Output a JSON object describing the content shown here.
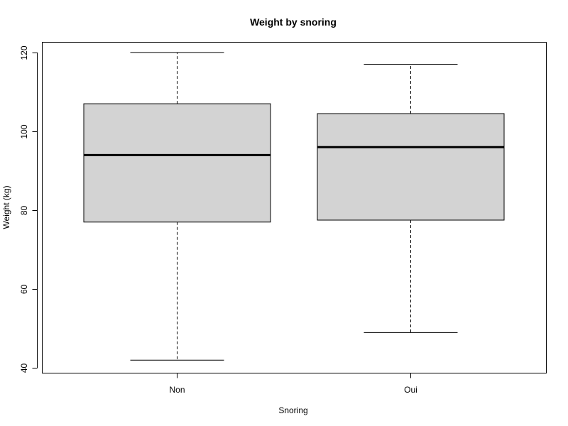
{
  "chart_data": {
    "type": "boxplot",
    "title": "Weight by snoring",
    "xlabel": "Snoring",
    "ylabel": "Weight (kg)",
    "categories": [
      "Non",
      "Oui"
    ],
    "boxes": [
      {
        "category": "Non",
        "min": 42,
        "q1": 77,
        "median": 94,
        "q3": 107,
        "max": 120
      },
      {
        "category": "Oui",
        "min": 49,
        "q1": 77.5,
        "median": 96,
        "q3": 104.5,
        "max": 117
      }
    ],
    "yticks": [
      40,
      60,
      80,
      100,
      120
    ],
    "ylim": [
      38.8,
      122.5
    ],
    "grid": false,
    "colors": {
      "box_fill": "#d3d3d3",
      "stroke": "#000000"
    }
  }
}
